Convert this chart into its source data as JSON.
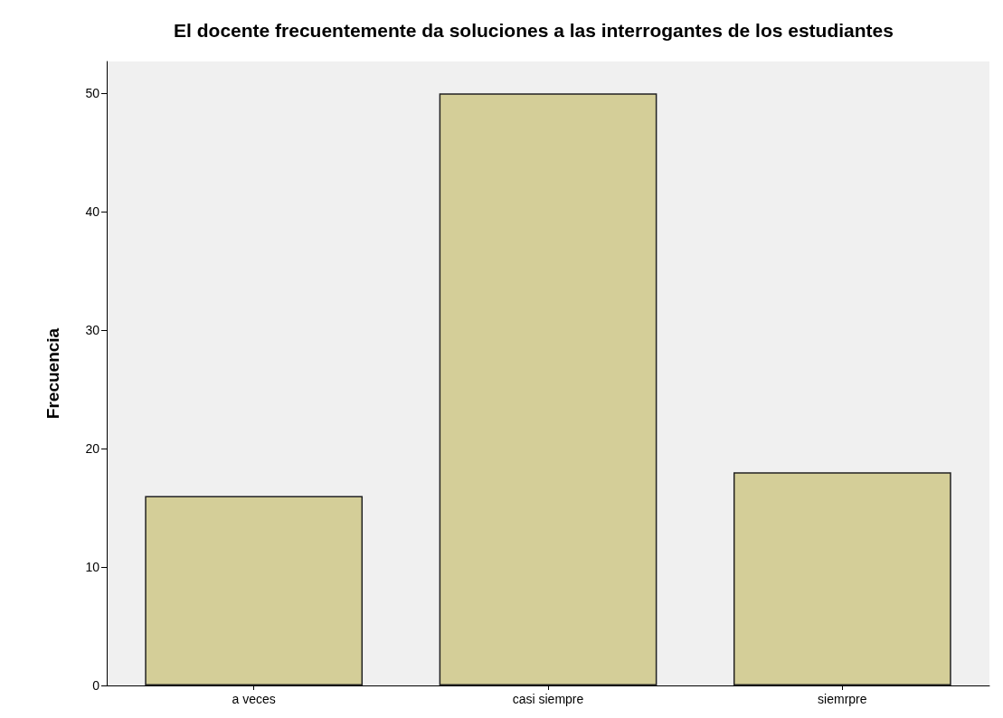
{
  "chart_data": {
    "type": "bar",
    "title": "El docente frecuentemente da soluciones a las interrogantes de los estudiantes",
    "ylabel": "Frecuencia",
    "categories": [
      "a veces",
      "casi siempre",
      "siemrpre"
    ],
    "values": [
      16,
      50,
      18
    ],
    "color": "#d4ce98",
    "ylim": [
      0,
      52.7
    ],
    "yticks": [
      0,
      10,
      20,
      30,
      40,
      50
    ],
    "grid": false
  }
}
